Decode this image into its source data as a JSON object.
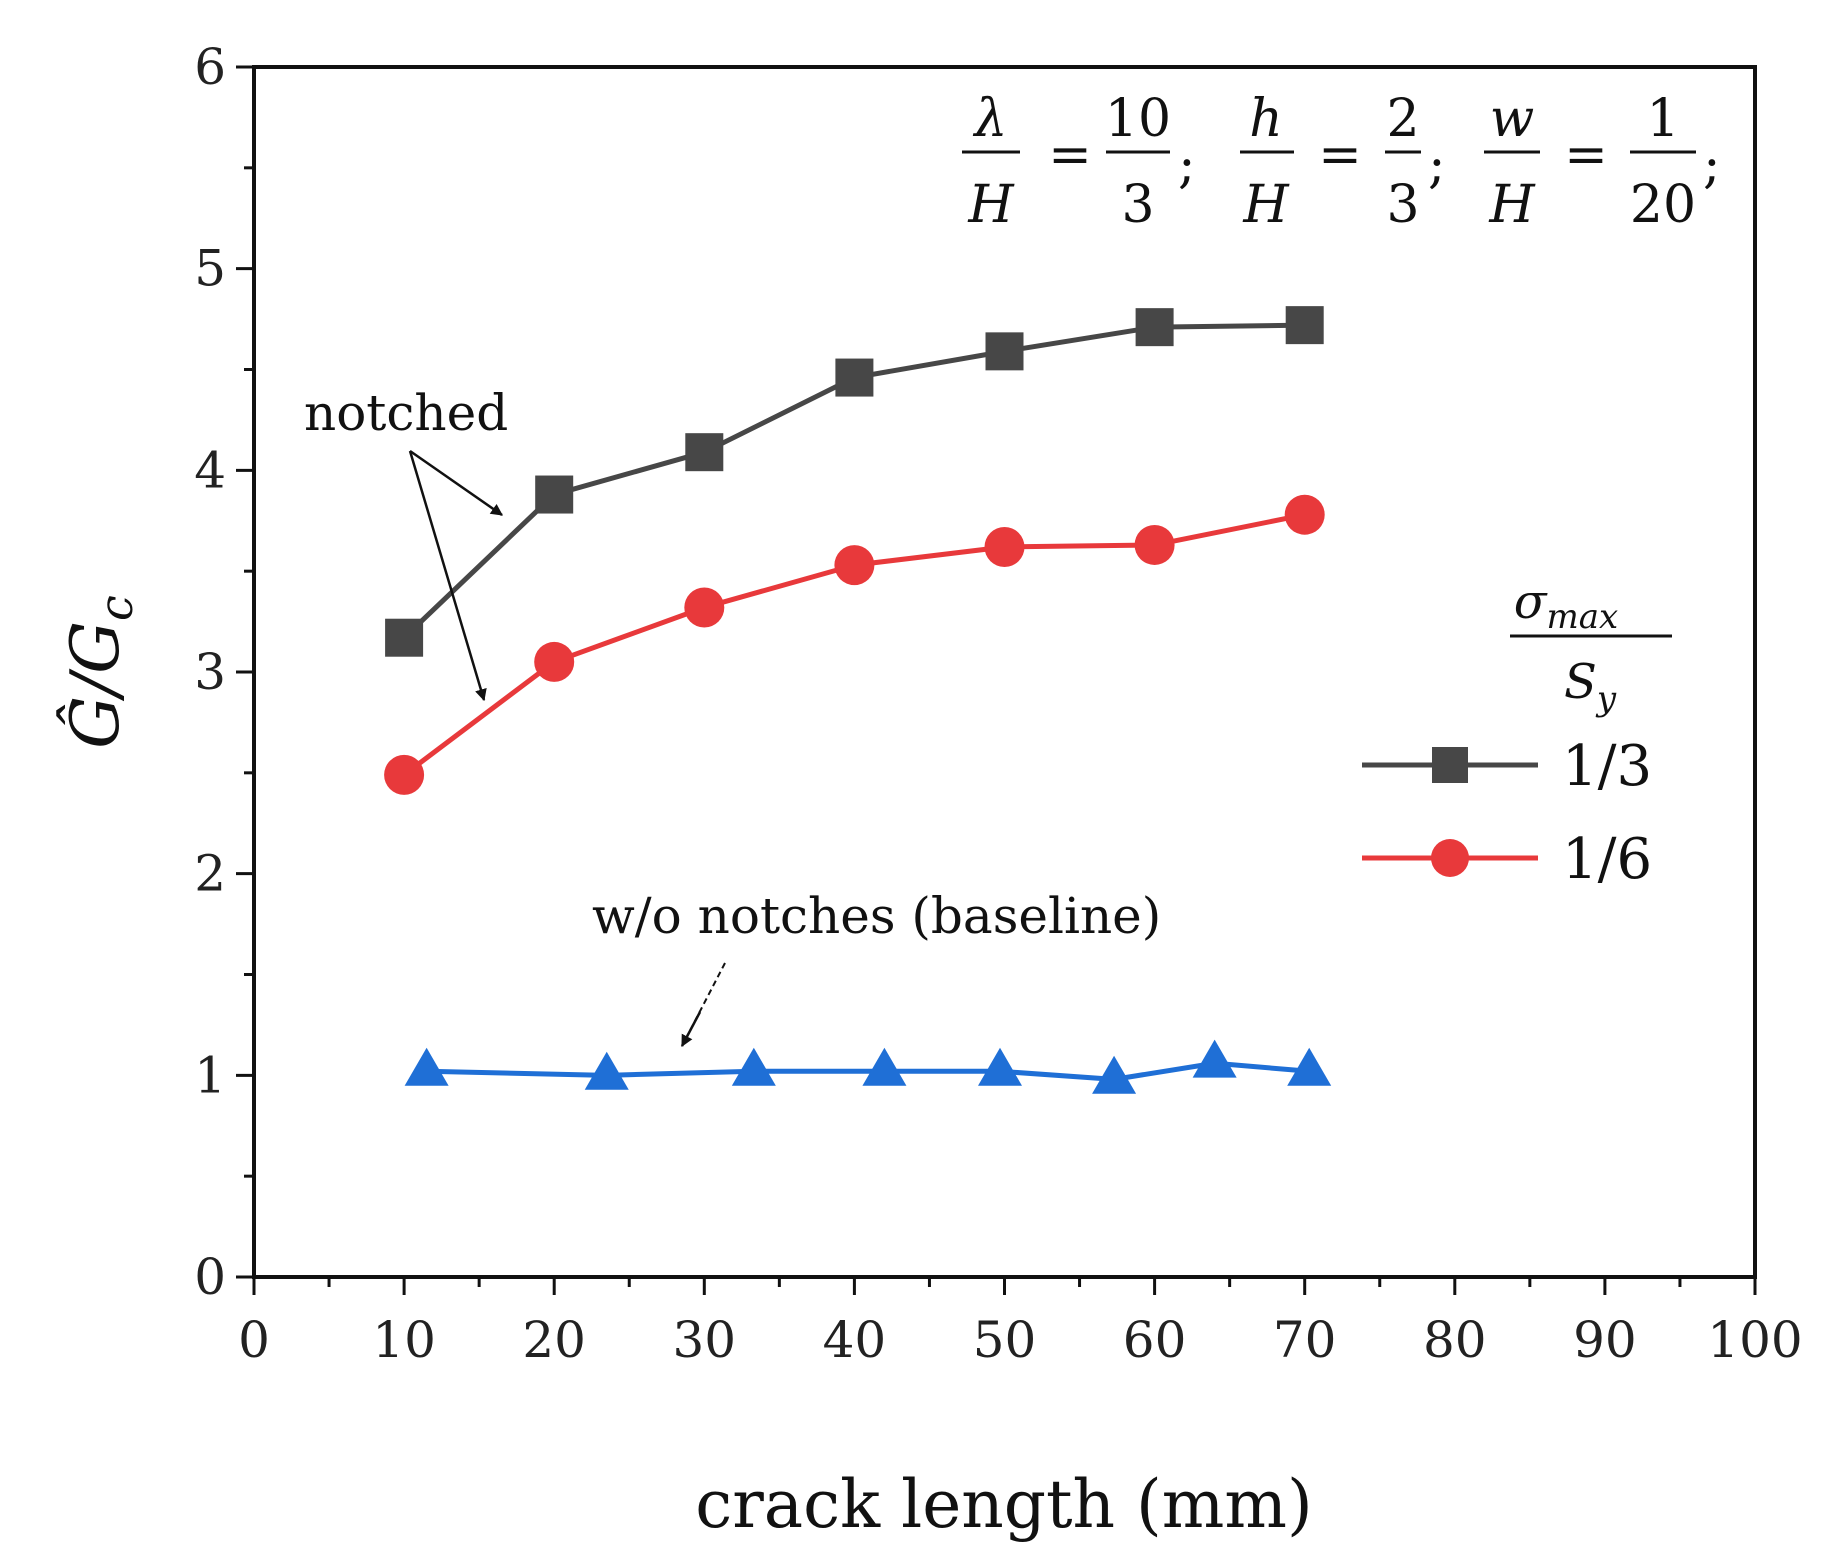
{
  "chart_data": {
    "type": "line",
    "xlabel": "crack length (mm)",
    "ylabel": "Ĝ/G",
    "ylabel_subscript": "c",
    "xlim": [
      0,
      100
    ],
    "ylim": [
      0,
      6
    ],
    "x_ticks": [
      0,
      10,
      20,
      30,
      40,
      50,
      60,
      70,
      80,
      90,
      100
    ],
    "y_ticks": [
      0,
      1,
      2,
      3,
      4,
      5,
      6
    ],
    "parameters": {
      "lambda_over_H": {
        "num": "λ",
        "den": "H",
        "value_num": "10",
        "value_den": "3"
      },
      "h_over_H": {
        "num": "h",
        "den": "H",
        "value_num": "2",
        "value_den": "3"
      },
      "w_over_H": {
        "num": "w",
        "den": "H",
        "value_num": "1",
        "value_den": "20"
      }
    },
    "legend": {
      "title_num": "σ",
      "title_num_sub": "max",
      "title_den": "S",
      "title_den_sub": "y",
      "placement": "right"
    },
    "series": [
      {
        "name": "1/3",
        "marker": "square",
        "color": "#474747",
        "x": [
          10,
          20,
          30,
          40,
          50,
          60,
          70
        ],
        "y": [
          3.17,
          3.88,
          4.09,
          4.46,
          4.59,
          4.71,
          4.72
        ]
      },
      {
        "name": "1/6",
        "marker": "circle",
        "color": "#e8393b",
        "x": [
          10,
          20,
          30,
          40,
          50,
          60,
          70
        ],
        "y": [
          2.49,
          3.05,
          3.32,
          3.53,
          3.62,
          3.63,
          3.78
        ]
      },
      {
        "name": "w/o notches (baseline)",
        "marker": "triangle",
        "color": "#1f6fd6",
        "in_legend": false,
        "x": [
          11.5,
          23.5,
          33.3,
          42,
          49.7,
          57.3,
          64,
          70.3
        ],
        "y": [
          1.02,
          1.0,
          1.02,
          1.02,
          1.02,
          0.98,
          1.06,
          1.02
        ]
      }
    ],
    "annotations": {
      "notched": "notched",
      "baseline": "w/o notches (baseline)"
    }
  }
}
